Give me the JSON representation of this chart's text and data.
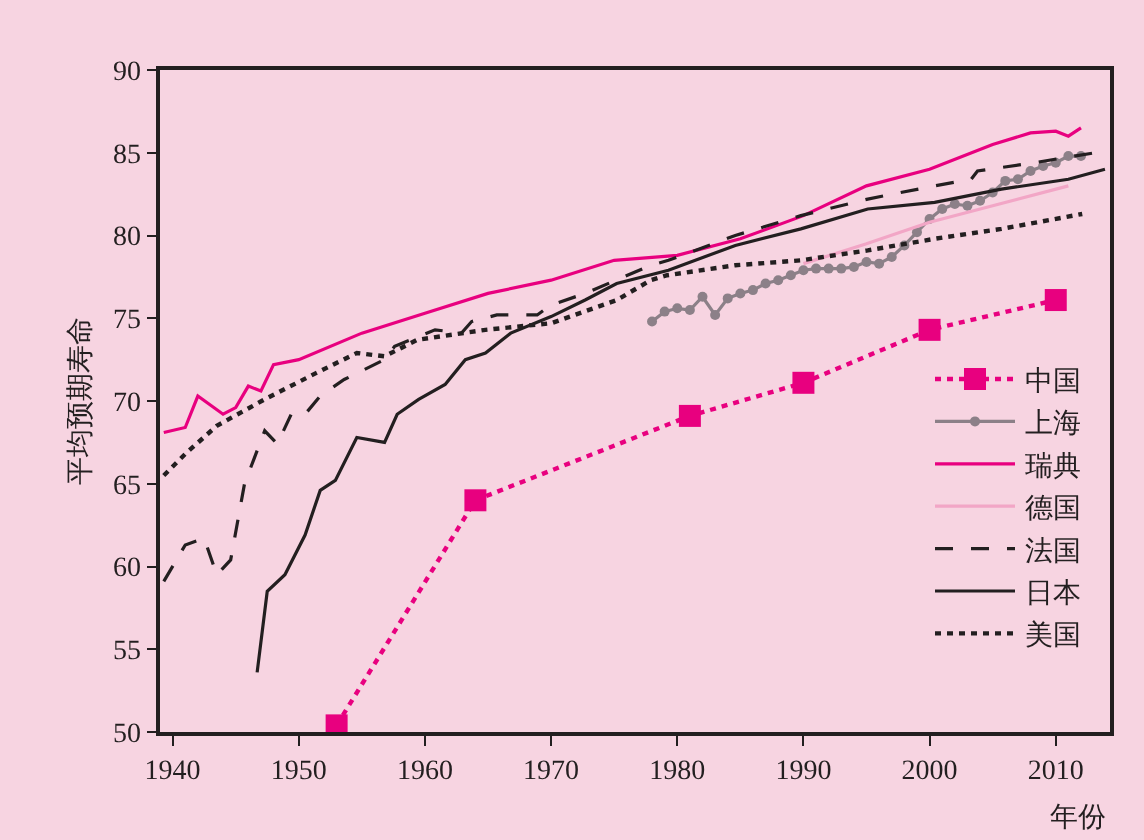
{
  "chart_data": {
    "type": "line",
    "xlabel": "年份",
    "ylabel": "平均预期寿命",
    "xlim": [
      1939,
      2014.3
    ],
    "ylim": [
      50,
      90
    ],
    "xticks": [
      1940,
      1950,
      1960,
      1970,
      1980,
      1990,
      2000,
      2010
    ],
    "yticks": [
      50,
      55,
      60,
      65,
      70,
      75,
      80,
      85,
      90
    ],
    "grid": false,
    "legend": "bottom right",
    "series": [
      {
        "name": "中国",
        "color": "#e8007f",
        "line_style": "dotted",
        "marker": "square",
        "x": [
          1953,
          1964,
          1981,
          1990,
          2000,
          2010
        ],
        "values": [
          50.4,
          64.0,
          69.1,
          71.1,
          74.3,
          76.1
        ]
      },
      {
        "name": "上海",
        "color": "#8c8088",
        "line_style": "solid",
        "marker": "circle",
        "x": [
          1978,
          1979,
          1980,
          1981,
          1982,
          1983,
          1984,
          1985,
          1986,
          1987,
          1988,
          1989,
          1990,
          1991,
          1992,
          1993,
          1994,
          1995,
          1996,
          1997,
          1998,
          1999,
          2000,
          2001,
          2002,
          2003,
          2004,
          2005,
          2006,
          2007,
          2008,
          2009,
          2010,
          2011,
          2012
        ],
        "values": [
          74.8,
          75.4,
          75.6,
          75.5,
          76.3,
          75.2,
          76.2,
          76.5,
          76.7,
          77.1,
          77.3,
          77.6,
          77.9,
          78.0,
          78.0,
          78.0,
          78.1,
          78.4,
          78.3,
          78.7,
          79.4,
          80.2,
          81.0,
          81.6,
          81.9,
          81.8,
          82.1,
          82.6,
          83.3,
          83.4,
          83.9,
          84.2,
          84.4,
          84.8,
          84.8
        ]
      },
      {
        "name": "瑞典",
        "color": "#e8007f",
        "line_style": "solid",
        "marker": "none",
        "x": [
          1939.3,
          1941,
          1942,
          1944,
          1945,
          1946,
          1947,
          1948,
          1950,
          1955,
          1960,
          1965,
          1970,
          1975,
          1980,
          1985,
          1990,
          1995,
          2000,
          2005,
          2008,
          2010,
          2011,
          2012
        ],
        "values": [
          68.1,
          68.4,
          70.3,
          69.2,
          69.6,
          70.9,
          70.6,
          72.2,
          72.5,
          74.1,
          75.3,
          76.5,
          77.3,
          78.5,
          78.8,
          79.8,
          81.2,
          83.0,
          84.0,
          85.5,
          86.2,
          86.3,
          86.0,
          86.5
        ]
      },
      {
        "name": "德国",
        "color": "#f2a6c6",
        "line_style": "solid",
        "marker": "none",
        "x": [
          1990,
          1995,
          2000,
          2005,
          2011
        ],
        "values": [
          78.3,
          79.5,
          80.8,
          81.8,
          83.0
        ]
      },
      {
        "name": "法国",
        "color": "#231f20",
        "line_style": "dashed",
        "marker": "none",
        "x": [
          1939.3,
          1941,
          1942.5,
          1943.5,
          1944.6,
          1945.7,
          1947.3,
          1948.3,
          1949.4,
          1950.5,
          1951.7,
          1953.6,
          1956.8,
          1957.6,
          1960.8,
          1962.9,
          1963.7,
          1965.7,
          1968.9,
          1970,
          1972.7,
          1977.9,
          1979.3,
          1984.6,
          1989.8,
          1995.1,
          2000.4,
          2003.3,
          2003.8,
          2008.3,
          2013.1
        ],
        "values": [
          59.1,
          61.3,
          61.7,
          59.5,
          60.4,
          65.0,
          68.2,
          67.4,
          69.2,
          69.2,
          70.3,
          71.3,
          72.5,
          73.3,
          74.3,
          74.1,
          74.8,
          75.2,
          75.2,
          75.8,
          76.5,
          78.2,
          78.5,
          80.0,
          81.2,
          82.2,
          83.0,
          83.4,
          83.9,
          84.4,
          85.0
        ]
      },
      {
        "name": "日本",
        "color": "#231f20",
        "line_style": "solid",
        "marker": "none",
        "x": [
          1946.7,
          1947.5,
          1948.9,
          1950.5,
          1951.7,
          1952.9,
          1954.6,
          1956.8,
          1957.8,
          1959.5,
          1961.6,
          1963.2,
          1964.8,
          1966.8,
          1970,
          1972.7,
          1975.2,
          1979.3,
          1984.6,
          1989.8,
          1995.1,
          2000.4,
          2005.7,
          2011,
          2013.9
        ],
        "values": [
          53.6,
          58.5,
          59.5,
          61.9,
          64.6,
          65.2,
          67.8,
          67.5,
          69.2,
          70.1,
          71.0,
          72.5,
          72.9,
          74.1,
          75.1,
          76.1,
          77.1,
          77.9,
          79.4,
          80.4,
          81.6,
          82.0,
          82.8,
          83.4,
          84.0
        ]
      },
      {
        "name": "美国",
        "color": "#231f20",
        "line_style": "dotted",
        "marker": "none",
        "x": [
          1939.3,
          1941,
          1943.5,
          1947.3,
          1951.4,
          1954.6,
          1956.8,
          1959.4,
          1964.8,
          1970,
          1975.2,
          1977.9,
          1979.2,
          1984.6,
          1989.8,
          1995.1,
          2000.4,
          2005.7,
          2012.1
        ],
        "values": [
          65.5,
          66.8,
          68.5,
          70.1,
          71.7,
          72.9,
          72.7,
          73.7,
          74.3,
          74.7,
          76.1,
          77.3,
          77.6,
          78.2,
          78.5,
          79.1,
          79.8,
          80.4,
          81.3
        ]
      }
    ]
  }
}
